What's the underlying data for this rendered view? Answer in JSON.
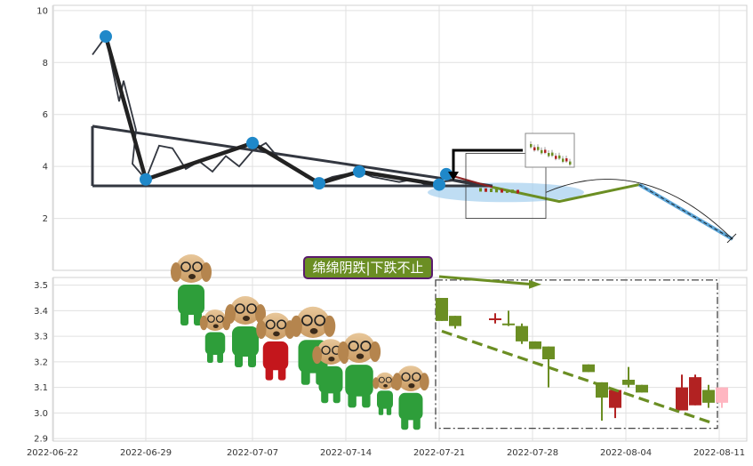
{
  "chart_data": [
    {
      "type": "line",
      "ylim": [
        0,
        10.2
      ],
      "yticks": [
        2,
        4,
        6,
        8,
        10
      ],
      "grid": true,
      "price_line": [
        [
          "2022-06-25",
          8.3
        ],
        [
          "2022-06-26",
          9.0
        ],
        [
          "2022-06-27",
          6.5
        ],
        [
          "2022-06-27",
          7.3
        ],
        [
          "2022-06-28",
          5.4
        ],
        [
          "2022-06-28",
          4.1
        ],
        [
          "2022-06-29",
          3.5
        ],
        [
          "2022-06-30",
          4.8
        ],
        [
          "2022-07-01",
          4.7
        ],
        [
          "2022-07-02",
          3.9
        ],
        [
          "2022-07-03",
          4.2
        ],
        [
          "2022-07-04",
          3.8
        ],
        [
          "2022-07-05",
          4.4
        ],
        [
          "2022-07-06",
          4.0
        ],
        [
          "2022-07-07",
          4.6
        ],
        [
          "2022-07-08",
          4.9
        ],
        [
          "2022-07-09",
          4.3
        ],
        [
          "2022-07-10",
          4.0
        ],
        [
          "2022-07-11",
          3.6
        ],
        [
          "2022-07-12",
          3.4
        ],
        [
          "2022-07-13",
          3.6
        ],
        [
          "2022-07-14",
          3.7
        ],
        [
          "2022-07-15",
          3.8
        ],
        [
          "2022-07-16",
          3.6
        ],
        [
          "2022-07-17",
          3.5
        ],
        [
          "2022-07-18",
          3.4
        ],
        [
          "2022-07-19",
          3.5
        ],
        [
          "2022-07-20",
          3.3
        ],
        [
          "2022-07-21",
          3.4
        ],
        [
          "2022-07-22",
          3.45
        ],
        [
          "2022-07-23",
          3.35
        ],
        [
          "2022-07-24",
          3.3
        ],
        [
          "2022-07-25",
          3.25
        ]
      ],
      "zigzag_points": [
        [
          "2022-06-26",
          9.0
        ],
        [
          "2022-06-29",
          3.5
        ],
        [
          "2022-07-07",
          4.9
        ],
        [
          "2022-07-12",
          3.35
        ],
        [
          "2022-07-15",
          3.8
        ],
        [
          "2022-07-21",
          3.3
        ],
        [
          "2022-07-21",
          3.7
        ]
      ],
      "channel_lines": [
        [
          [
            "2022-06-25",
            5.55
          ],
          [
            "2022-07-25",
            3.25
          ]
        ],
        [
          [
            "2022-06-25",
            3.25
          ],
          [
            "2022-07-25",
            3.25
          ]
        ]
      ],
      "forecast_path": [
        [
          "2022-07-25",
          3.2
        ],
        [
          "2022-07-30",
          2.65
        ],
        [
          "2022-08-05",
          3.3
        ],
        [
          "2022-08-12",
          1.2
        ]
      ],
      "arc_endpoints": [
        [
          "2022-07-29",
          3.0
        ],
        [
          "2022-08-12",
          1.2
        ]
      ],
      "highlight_ellipse": {
        "center": [
          "2022-07-26",
          3.0
        ],
        "ydata_height": 0.75
      },
      "zoom_box": {
        "x": [
          "2022-07-23",
          "2022-07-29"
        ],
        "y": [
          2.0,
          4.5
        ]
      }
    },
    {
      "type": "candlestick",
      "x_tick_labels": [
        "2022-06-22",
        "2022-06-29",
        "2022-07-07",
        "2022-07-14",
        "2022-07-21",
        "2022-07-28",
        "2022-08-04",
        "2022-08-11"
      ],
      "x_tick_dates": [
        "2022-06-22",
        "2022-06-29",
        "2022-07-07",
        "2022-07-14",
        "2022-07-21",
        "2022-07-28",
        "2022-08-04",
        "2022-08-11"
      ],
      "x_range": [
        "2022-06-22",
        "2022-08-15"
      ],
      "ylim": [
        2.89,
        3.53
      ],
      "yticks": [
        2.9,
        3.0,
        3.1,
        3.2,
        3.3,
        3.4,
        3.5
      ],
      "grid": true,
      "candles": [
        {
          "date": "2022-07-21",
          "open": 3.45,
          "high": 3.45,
          "low": 3.36,
          "close": 3.36,
          "color": "#6b8e23"
        },
        {
          "date": "2022-07-22",
          "open": 3.38,
          "high": 3.38,
          "low": 3.33,
          "close": 3.34,
          "color": "#6b8e23"
        },
        {
          "date": "2022-07-25",
          "open": 3.37,
          "high": 3.39,
          "low": 3.35,
          "close": 3.37,
          "color": "#b22222"
        },
        {
          "date": "2022-07-26",
          "open": 3.35,
          "high": 3.4,
          "low": 3.34,
          "close": 3.345,
          "color": "#6b8e23"
        },
        {
          "date": "2022-07-27",
          "open": 3.34,
          "high": 3.35,
          "low": 3.27,
          "close": 3.28,
          "color": "#6b8e23"
        },
        {
          "date": "2022-07-28",
          "open": 3.28,
          "high": 3.28,
          "low": 3.25,
          "close": 3.25,
          "color": "#6b8e23"
        },
        {
          "date": "2022-07-29",
          "open": 3.26,
          "high": 3.26,
          "low": 3.1,
          "close": 3.21,
          "color": "#6b8e23"
        },
        {
          "date": "2022-08-01",
          "open": 3.19,
          "high": 3.19,
          "low": 3.16,
          "close": 3.16,
          "color": "#6b8e23"
        },
        {
          "date": "2022-08-02",
          "open": 3.12,
          "high": 3.12,
          "low": 2.97,
          "close": 3.06,
          "color": "#6b8e23"
        },
        {
          "date": "2022-08-03",
          "open": 3.02,
          "high": 3.09,
          "low": 2.98,
          "close": 3.09,
          "color": "#b22222"
        },
        {
          "date": "2022-08-04",
          "open": 3.13,
          "high": 3.18,
          "low": 3.1,
          "close": 3.11,
          "color": "#6b8e23"
        },
        {
          "date": "2022-08-05",
          "open": 3.11,
          "high": 3.11,
          "low": 3.08,
          "close": 3.08,
          "color": "#6b8e23"
        },
        {
          "date": "2022-08-08",
          "open": 3.01,
          "high": 3.15,
          "low": 3.01,
          "close": 3.1,
          "color": "#b22222"
        },
        {
          "date": "2022-08-09",
          "open": 3.03,
          "high": 3.15,
          "low": 3.03,
          "close": 3.14,
          "color": "#b22222"
        },
        {
          "date": "2022-08-10",
          "open": 3.09,
          "high": 3.11,
          "low": 3.02,
          "close": 3.04,
          "color": "#6b8e23"
        },
        {
          "date": "2022-08-11",
          "open": 3.04,
          "high": 3.1,
          "low": 3.02,
          "close": 3.1,
          "color": "#ffb6c1"
        }
      ],
      "trend_line": [
        [
          "2022-07-21",
          3.32
        ],
        [
          "2022-08-10",
          2.96
        ]
      ],
      "annotation": {
        "text": "绵绵阴跌|下跌不止",
        "arrow_to": [
          "2022-07-28",
          3.51
        ]
      },
      "dashdot_box": {
        "x": [
          "2022-07-20",
          "2022-08-10"
        ],
        "y": [
          2.94,
          3.52
        ]
      }
    }
  ],
  "colors": {
    "green": "#6b8e23",
    "red": "#b22222",
    "pink": "#ffb6c1",
    "marker_blue": "#1f88c9",
    "ellipse": "#a9d1ef",
    "dark": "#333740",
    "annot_bg": "#6b8e23",
    "annot_border": "#5a1a6e"
  },
  "icons": [
    "dog-mascot-icon",
    "mini-candlestick-inset-icon"
  ]
}
